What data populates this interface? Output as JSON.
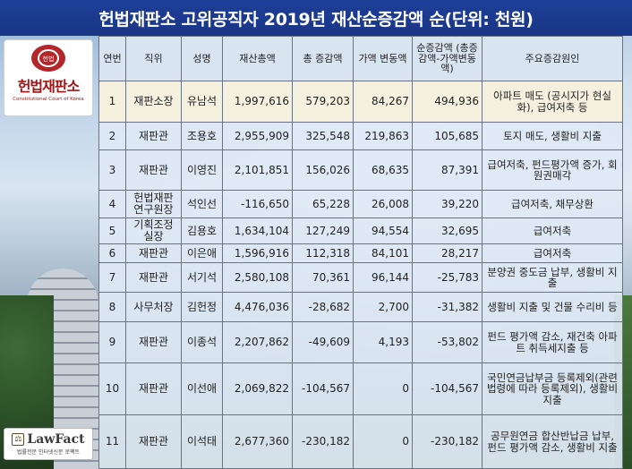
{
  "title": "헌법재판소 고위공직자 2019년 재산순증감액 순(단위: 천원)",
  "logo": {
    "name": "헌법재판소",
    "subtitle": "Constitutional Court of Korea",
    "emblem_text": "헌법"
  },
  "watermark": {
    "name": "LawFact",
    "tagline": "법률전문 인터넷신문 로팩트"
  },
  "colors": {
    "title_bar": "#1d3f98",
    "header_bg": "#d9e4f1",
    "row_bg": "#dee9f5",
    "highlight_row_bg": "#f6f1df",
    "logo_red": "#a01515"
  },
  "table": {
    "headers": [
      "연번",
      "직위",
      "성명",
      "재산총액",
      "총 증감액",
      "가액 변동액",
      "순증감액 (총증감액-가액변동액)",
      "주요증감원인"
    ],
    "rows": [
      {
        "no": "1",
        "position": "재판소장",
        "name": "유남석",
        "total": "1,997,616",
        "total_change": "579,203",
        "value_change": "84,267",
        "net_change": "494,936",
        "reason": "아파트 매도 (공시지가 현실화), 급여저축 등",
        "highlight": true
      },
      {
        "no": "2",
        "position": "재판관",
        "name": "조용호",
        "total": "2,955,909",
        "total_change": "325,548",
        "value_change": "219,863",
        "net_change": "105,685",
        "reason": "토지 매도, 생활비 지출",
        "highlight": false
      },
      {
        "no": "3",
        "position": "재판관",
        "name": "이영진",
        "total": "2,101,851",
        "total_change": "156,026",
        "value_change": "68,635",
        "net_change": "87,391",
        "reason": "급여저축, 펀드평가액 증가, 회원권매각",
        "highlight": false
      },
      {
        "no": "4",
        "position": "헌법재판 연구원장",
        "name": "석인선",
        "total": "-116,650",
        "total_change": "65,228",
        "value_change": "26,008",
        "net_change": "39,220",
        "reason": "급여저축, 채무상환",
        "highlight": false
      },
      {
        "no": "5",
        "position": "기획조정 실장",
        "name": "김용호",
        "total": "1,634,104",
        "total_change": "127,249",
        "value_change": "94,554",
        "net_change": "32,695",
        "reason": "급여저축",
        "highlight": false
      },
      {
        "no": "6",
        "position": "재판관",
        "name": "이은애",
        "total": "1,596,916",
        "total_change": "112,318",
        "value_change": "84,101",
        "net_change": "28,217",
        "reason": "급여저축",
        "highlight": false
      },
      {
        "no": "7",
        "position": "재판관",
        "name": "서기석",
        "total": "2,580,108",
        "total_change": "70,361",
        "value_change": "96,144",
        "net_change": "-25,783",
        "reason": "분양권 중도금 납부, 생활비 지출",
        "highlight": false
      },
      {
        "no": "8",
        "position": "사무처장",
        "name": "김헌정",
        "total": "4,476,036",
        "total_change": "-28,682",
        "value_change": "2,700",
        "net_change": "-31,382",
        "reason": "생활비 지출 및 건물 수리비 등",
        "highlight": false
      },
      {
        "no": "9",
        "position": "재판관",
        "name": "이종석",
        "total": "2,207,862",
        "total_change": "-49,609",
        "value_change": "4,193",
        "net_change": "-53,802",
        "reason": "펀드 평가액 감소, 재건축 아파트 취득세지출 등",
        "highlight": false
      },
      {
        "no": "10",
        "position": "재판관",
        "name": "이선애",
        "total": "2,069,822",
        "total_change": "-104,567",
        "value_change": "0",
        "net_change": "-104,567",
        "reason": "국민연금납부금 등록제외(관련법령에 따라 등록제외), 생활비지출",
        "highlight": false
      },
      {
        "no": "11",
        "position": "재판관",
        "name": "이석태",
        "total": "2,677,360",
        "total_change": "-230,182",
        "value_change": "0",
        "net_change": "-230,182",
        "reason": "공무원연금 합산반납금 납부, 펀드 평가액 감소, 생활비 지출",
        "highlight": false
      }
    ]
  }
}
